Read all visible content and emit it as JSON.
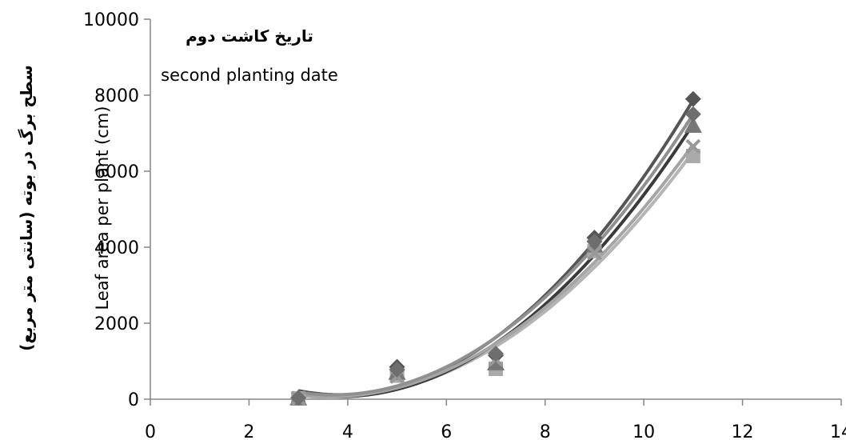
{
  "chart_data": {
    "type": "scatter",
    "title": "تاریخ کاشت دوم",
    "subtitle": "second planting date",
    "xlabel": "",
    "ylabel": "Leaf area per plant (cm)",
    "ylabel_fa": "سطح برگ در بوته (سانتی متر مربع)",
    "xlim": [
      0,
      14
    ],
    "ylim": [
      0,
      10000
    ],
    "x_ticks": [
      "0",
      "2",
      "4",
      "6",
      "8",
      "10",
      "12",
      "14"
    ],
    "y_ticks": [
      "0",
      "2000",
      "4000",
      "6000",
      "8000",
      "10000"
    ],
    "grid": false,
    "legend": "none",
    "x": [
      3,
      5,
      7,
      9,
      11
    ],
    "series": [
      {
        "marker": "diamond",
        "color": "#555555",
        "trend_color": "#555555",
        "values": [
          40,
          850,
          1150,
          4250,
          7900
        ]
      },
      {
        "marker": "square",
        "color": "#aaaaaa",
        "trend_color": "#b5b5b5",
        "values": [
          20,
          620,
          800,
          3900,
          6400
        ]
      },
      {
        "marker": "triangle",
        "color": "#777777",
        "trend_color": "#3a3a3a",
        "values": [
          30,
          700,
          950,
          4050,
          7200
        ]
      },
      {
        "marker": "x",
        "color": "#999999",
        "trend_color": "#a5a5a5",
        "values": [
          25,
          600,
          1050,
          3850,
          6650
        ]
      },
      {
        "marker": "diamond",
        "color": "#6e6e6e",
        "trend_color": "#909090",
        "values": [
          35,
          780,
          1200,
          4150,
          7500
        ]
      }
    ]
  }
}
